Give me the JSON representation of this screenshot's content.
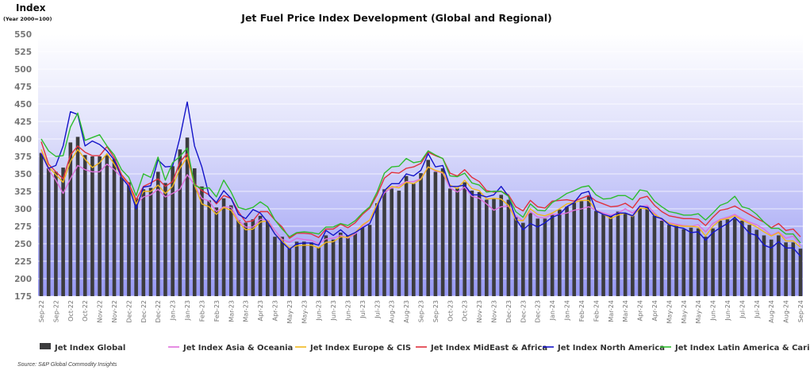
{
  "chart_data": {
    "type": "bar",
    "title": "Jet Fuel Price Index Development (Global and Regional)",
    "ylabel": "Index",
    "ylabel_sub": "(Year 2000=100)",
    "ylim": [
      175,
      550
    ],
    "yticks": [
      175,
      200,
      225,
      250,
      275,
      300,
      325,
      350,
      375,
      400,
      425,
      450,
      475,
      500,
      525,
      550
    ],
    "grid": true,
    "legend_position": "bottom",
    "source": "Source:  S&P Global Commodity Insights",
    "xtick_labels": [
      "Sep-22",
      "Sep-22",
      "Oct-22",
      "Oct-22",
      "Nov-22",
      "Nov-22",
      "Dec-22",
      "Dec-22",
      "Dec-22",
      "Jan-23",
      "Jan-23",
      "Feb-23",
      "Feb-23",
      "Mar-23",
      "Mar-23",
      "Apr-23",
      "Apr-23",
      "May-23",
      "May-23",
      "Jun-23",
      "Jun-23",
      "Jun-23",
      "Jul-23",
      "Jul-23",
      "Aug-23",
      "Aug-23",
      "Sep-23",
      "Sep-23",
      "Oct-23",
      "Oct-23",
      "Nov-23",
      "Nov-23",
      "Dec-23",
      "Dec-23",
      "Dec-23",
      "Jan-24",
      "Jan-24",
      "Feb-24",
      "Feb-24",
      "Mar-24",
      "Mar-24",
      "Apr-24",
      "Apr-24",
      "May-24",
      "May-24",
      "May-24",
      "Jun-24",
      "Jun-24",
      "Jul-24",
      "Jul-24",
      "Aug-24",
      "Aug-24",
      "Sep-24"
    ],
    "xtick_every": 2,
    "series": [
      {
        "name": "Jet Index Global",
        "kind": "bar",
        "color": "#3c3c3e",
        "values": [
          380,
          358,
          353,
          359,
          395,
          403,
          377,
          375,
          375,
          377,
          371,
          347,
          338,
          315,
          328,
          330,
          353,
          337,
          361,
          385,
          402,
          358,
          332,
          312,
          302,
          315,
          305,
          284,
          280,
          285,
          290,
          283,
          260,
          260,
          245,
          253,
          253,
          252,
          245,
          262,
          256,
          266,
          262,
          265,
          274,
          277,
          308,
          328,
          329,
          326,
          347,
          336,
          351,
          370,
          353,
          358,
          329,
          329,
          338,
          326,
          324,
          313,
          315,
          320,
          313,
          288,
          280,
          294,
          286,
          286,
          292,
          299,
          303,
          309,
          311,
          319,
          297,
          292,
          290,
          296,
          294,
          290,
          301,
          303,
          290,
          283,
          277,
          277,
          271,
          273,
          272,
          260,
          272,
          283,
          285,
          286,
          283,
          277,
          270,
          262,
          256,
          262,
          252,
          252,
          243
        ]
      },
      {
        "name": "Jet Index Asia & Oceania",
        "kind": "line",
        "color": "#e070dc",
        "values": [
          381,
          356,
          341,
          322,
          343,
          362,
          356,
          353,
          353,
          364,
          356,
          345,
          334,
          307,
          317,
          320,
          328,
          317,
          322,
          328,
          349,
          334,
          315,
          311,
          296,
          303,
          302,
          284,
          274,
          274,
          285,
          284,
          269,
          256,
          252,
          258,
          256,
          255,
          250,
          257,
          258,
          262,
          258,
          264,
          275,
          284,
          305,
          323,
          330,
          333,
          339,
          339,
          343,
          360,
          354,
          351,
          330,
          324,
          331,
          318,
          315,
          307,
          298,
          303,
          304,
          290,
          283,
          296,
          288,
          287,
          292,
          292,
          294,
          298,
          300,
          303,
          298,
          294,
          291,
          294,
          300,
          294,
          303,
          305,
          294,
          284,
          280,
          278,
          276,
          275,
          277,
          267,
          279,
          285,
          288,
          292,
          286,
          281,
          277,
          271,
          262,
          267,
          258,
          261,
          248
        ]
      },
      {
        "name": "Jet Index Europe & CIS",
        "kind": "line",
        "color": "#f2b81c",
        "values": [
          385,
          360,
          349,
          338,
          368,
          385,
          371,
          359,
          366,
          379,
          364,
          347,
          336,
          307,
          325,
          325,
          334,
          322,
          332,
          358,
          374,
          334,
          307,
          303,
          292,
          302,
          298,
          281,
          270,
          271,
          281,
          283,
          264,
          254,
          244,
          247,
          248,
          248,
          244,
          252,
          253,
          260,
          259,
          266,
          277,
          284,
          307,
          326,
          332,
          330,
          338,
          336,
          342,
          360,
          355,
          352,
          334,
          329,
          341,
          329,
          326,
          314,
          315,
          314,
          305,
          284,
          283,
          300,
          292,
          290,
          294,
          300,
          307,
          309,
          312,
          312,
          298,
          292,
          286,
          291,
          294,
          289,
          301,
          300,
          292,
          286,
          279,
          276,
          275,
          275,
          274,
          261,
          275,
          284,
          286,
          290,
          284,
          279,
          274,
          267,
          261,
          266,
          254,
          254,
          245
        ]
      },
      {
        "name": "Jet Index MidEast & Africa",
        "kind": "line",
        "color": "#e0303c",
        "values": [
          396,
          364,
          353,
          343,
          377,
          390,
          381,
          376,
          376,
          389,
          373,
          349,
          336,
          313,
          332,
          337,
          343,
          332,
          339,
          367,
          379,
          336,
          326,
          320,
          307,
          319,
          315,
          296,
          281,
          283,
          296,
          296,
          284,
          274,
          258,
          265,
          265,
          264,
          259,
          271,
          271,
          278,
          273,
          280,
          292,
          301,
          320,
          344,
          352,
          351,
          358,
          360,
          365,
          381,
          376,
          372,
          351,
          347,
          356,
          345,
          339,
          326,
          324,
          325,
          320,
          303,
          297,
          312,
          303,
          301,
          311,
          312,
          313,
          311,
          315,
          319,
          311,
          307,
          303,
          304,
          308,
          301,
          315,
          318,
          305,
          296,
          290,
          288,
          286,
          286,
          285,
          276,
          288,
          298,
          300,
          304,
          298,
          292,
          286,
          281,
          273,
          279,
          269,
          271,
          260
        ]
      },
      {
        "name": "Jet Index North America",
        "kind": "line",
        "color": "#1414c8",
        "values": [
          379,
          358,
          362,
          390,
          439,
          435,
          390,
          397,
          392,
          383,
          370,
          345,
          332,
          300,
          331,
          333,
          370,
          360,
          361,
          402,
          453,
          390,
          360,
          319,
          309,
          326,
          315,
          292,
          286,
          299,
          294,
          281,
          264,
          252,
          242,
          250,
          251,
          251,
          248,
          269,
          262,
          270,
          261,
          266,
          273,
          279,
          303,
          326,
          336,
          336,
          350,
          347,
          355,
          379,
          360,
          362,
          332,
          332,
          334,
          320,
          320,
          317,
          320,
          332,
          318,
          286,
          270,
          279,
          274,
          280,
          288,
          292,
          303,
          309,
          322,
          325,
          297,
          292,
          289,
          294,
          294,
          290,
          304,
          302,
          289,
          286,
          277,
          274,
          272,
          266,
          267,
          255,
          266,
          273,
          279,
          288,
          277,
          265,
          262,
          248,
          244,
          253,
          244,
          244,
          232
        ]
      },
      {
        "name": "Jet Index Latin America & Caribbean",
        "kind": "line",
        "color": "#2ebd2e",
        "values": [
          400,
          383,
          375,
          376,
          417,
          437,
          398,
          402,
          406,
          390,
          377,
          356,
          345,
          319,
          350,
          345,
          374,
          341,
          366,
          375,
          387,
          334,
          329,
          330,
          317,
          341,
          324,
          302,
          299,
          302,
          310,
          303,
          284,
          271,
          260,
          266,
          267,
          266,
          264,
          274,
          274,
          279,
          276,
          283,
          294,
          303,
          324,
          351,
          360,
          361,
          372,
          366,
          368,
          383,
          377,
          372,
          347,
          346,
          351,
          337,
          334,
          324,
          325,
          325,
          318,
          296,
          288,
          307,
          298,
          297,
          309,
          315,
          322,
          326,
          331,
          333,
          320,
          314,
          315,
          319,
          319,
          313,
          327,
          325,
          311,
          303,
          296,
          294,
          291,
          291,
          293,
          284,
          294,
          305,
          309,
          318,
          303,
          300,
          292,
          281,
          272,
          272,
          264,
          264,
          251
        ]
      }
    ]
  }
}
